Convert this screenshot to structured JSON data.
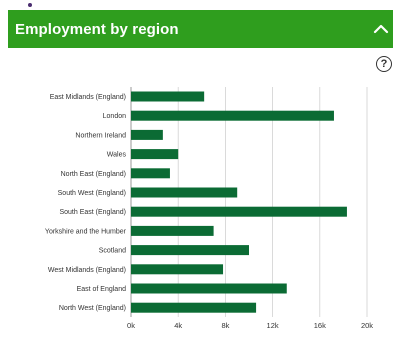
{
  "header": {
    "title": "Employment by region",
    "collapse_icon": "chevron-up-icon",
    "help_label": "?"
  },
  "colors": {
    "header_bg": "#2f9e1e",
    "bar": "#0b6b34",
    "grid": "#d0d0d0"
  },
  "chart_data": {
    "type": "bar",
    "orientation": "horizontal",
    "title": "Employment by region",
    "xlabel": "",
    "ylabel": "",
    "xlim": [
      0,
      20000
    ],
    "x_ticks": [
      0,
      4000,
      8000,
      12000,
      16000,
      20000
    ],
    "x_tick_labels": [
      "0k",
      "4k",
      "8k",
      "12k",
      "16k",
      "20k"
    ],
    "grid": true,
    "categories": [
      "East Midlands (England)",
      "London",
      "Northern Ireland",
      "Wales",
      "North East (England)",
      "South West (England)",
      "South East (England)",
      "Yorkshire and the Humber",
      "Scotland",
      "West Midlands (England)",
      "East of England",
      "North West (England)"
    ],
    "values": [
      6200,
      17200,
      2700,
      4000,
      3300,
      9000,
      18300,
      7000,
      10000,
      7800,
      13200,
      10600
    ]
  }
}
